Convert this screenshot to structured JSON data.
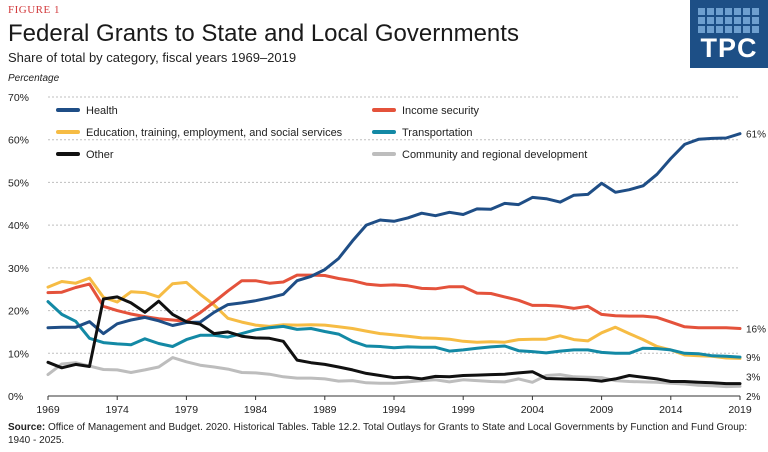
{
  "header": {
    "figure_label": "FIGURE 1",
    "title": "Federal Grants to State and Local Governments",
    "subtitle": "Share of total by category, fiscal years 1969–2019",
    "logo_text": "TPC"
  },
  "source": {
    "label": "Source:",
    "text": " Office of Management and Budget. 2020. Historical Tables. Table 12.2. Total Outlays for Grants to State and Local Governments by Function and Fund Group: 1940 - 2025."
  },
  "chart_data": {
    "type": "line",
    "title": "Federal Grants to State and Local Governments",
    "subtitle": "Share of total by category, fiscal years 1969–2019",
    "ylabel": "Percentage",
    "xlabel": "",
    "ylim": [
      0,
      70
    ],
    "xlim": [
      1969,
      2019
    ],
    "yticks": [
      "0%",
      "10%",
      "20%",
      "30%",
      "40%",
      "50%",
      "60%",
      "70%"
    ],
    "xticks": [
      "1969",
      "1974",
      "1979",
      "1984",
      "1989",
      "1994",
      "1999",
      "2004",
      "2009",
      "2014",
      "2019"
    ],
    "grid": "horizontal dashed",
    "legend_position": "top",
    "x": [
      1969,
      1970,
      1971,
      1972,
      1973,
      1974,
      1975,
      1976,
      1977,
      1978,
      1979,
      1980,
      1981,
      1982,
      1983,
      1984,
      1985,
      1986,
      1987,
      1988,
      1989,
      1990,
      1991,
      1992,
      1993,
      1994,
      1995,
      1996,
      1997,
      1998,
      1999,
      2000,
      2001,
      2002,
      2003,
      2004,
      2005,
      2006,
      2007,
      2008,
      2009,
      2010,
      2011,
      2012,
      2013,
      2014,
      2015,
      2016,
      2017,
      2018,
      2019
    ],
    "series": [
      {
        "name": "Health",
        "color": "#1f4e86",
        "end_label": "61%",
        "values": [
          16,
          16.1,
          16.1,
          17.4,
          14.6,
          16.9,
          17.8,
          18.4,
          17.6,
          16.5,
          17.2,
          17.3,
          19.6,
          21.4,
          21.8,
          22.3,
          23,
          23.8,
          27,
          28,
          29.6,
          32.2,
          36.3,
          40,
          41.2,
          40.9,
          41.7,
          42.8,
          42.2,
          43,
          42.5,
          43.8,
          43.7,
          45.1,
          44.8,
          46.5,
          46.2,
          45.4,
          47,
          47.2,
          49.8,
          47.7,
          48.3,
          49.2,
          51.9,
          55.6,
          58.9,
          60.1,
          60.3,
          60.4,
          61.4
        ]
      },
      {
        "name": "Income security",
        "color": "#e4523b",
        "end_label": "16%",
        "values": [
          24.2,
          24.3,
          25.4,
          26.2,
          21,
          20,
          19.2,
          18.6,
          18.1,
          17.8,
          17.5,
          19.5,
          22,
          24.6,
          27,
          27,
          26.4,
          26.7,
          28.3,
          28.3,
          28.2,
          27.5,
          27,
          26.2,
          25.9,
          26,
          25.8,
          25.2,
          25.1,
          25.6,
          25.6,
          24.1,
          24,
          23.2,
          22.4,
          21.2,
          21.2,
          21,
          20.5,
          21,
          19.1,
          18.8,
          18.7,
          18.7,
          18.4,
          17.3,
          16.2,
          16,
          16,
          16,
          15.8
        ]
      },
      {
        "name": "Education, training, employment, and social services",
        "color": "#f6bc44",
        "end_label": "",
        "values": [
          25.5,
          26.8,
          26.4,
          27.6,
          23.1,
          22,
          24.4,
          24.2,
          23.2,
          26.3,
          26.6,
          23.8,
          21.3,
          18.2,
          17.3,
          16.6,
          16.3,
          16.7,
          16.6,
          16.7,
          16.6,
          16.2,
          15.8,
          15.2,
          14.6,
          14.3,
          14,
          13.6,
          13.5,
          13.3,
          12.8,
          12.6,
          12.7,
          12.6,
          13.2,
          13.3,
          13.3,
          14.1,
          13.2,
          12.9,
          14.8,
          16.1,
          14.6,
          13.2,
          11.6,
          10.8,
          9.6,
          9.4,
          9.3,
          8.9,
          8.8
        ]
      },
      {
        "name": "Transportation",
        "color": "#1389a5",
        "end_label": "9%",
        "values": [
          22.1,
          19.1,
          17.5,
          13.5,
          12.5,
          12.2,
          12,
          13.4,
          12.3,
          11.6,
          13.2,
          14.2,
          14.2,
          13.8,
          14.6,
          15.5,
          16,
          16.3,
          15.6,
          15.8,
          15.1,
          14.5,
          12.8,
          11.7,
          11.6,
          11.3,
          11.5,
          11.4,
          11.4,
          10.5,
          10.8,
          11.2,
          11.5,
          11.7,
          10.6,
          10.4,
          10.1,
          10.5,
          10.8,
          10.8,
          10.2,
          10,
          10,
          11.2,
          11.1,
          10.8,
          10,
          9.9,
          9.4,
          9.3,
          9.1
        ]
      },
      {
        "name": "Other",
        "color": "#111111",
        "end_label": "3%",
        "values": [
          7.9,
          6.6,
          7.4,
          6.9,
          22.7,
          23.2,
          21.8,
          19.6,
          22.2,
          19.1,
          17.4,
          16.8,
          14.6,
          15,
          14,
          13.6,
          13.5,
          12.8,
          8.4,
          7.8,
          7.4,
          6.8,
          6.1,
          5.3,
          4.8,
          4.3,
          4.4,
          4,
          4.6,
          4.5,
          4.8,
          4.9,
          5,
          5.1,
          5.4,
          5.7,
          4.1,
          4,
          3.9,
          3.8,
          3.5,
          4,
          4.8,
          4.4,
          4,
          3.4,
          3.4,
          3.2,
          3.1,
          2.9,
          2.9
        ]
      },
      {
        "name": "Community and regional development",
        "color": "#bdbdbd",
        "end_label": "2%",
        "values": [
          5,
          7.5,
          7.8,
          7,
          6.2,
          6.1,
          5.5,
          6.1,
          6.8,
          9,
          8,
          7.2,
          6.8,
          6.3,
          5.5,
          5.4,
          5.1,
          4.5,
          4.2,
          4.2,
          4,
          3.5,
          3.6,
          3.1,
          3,
          3,
          3.3,
          3.6,
          3.8,
          3.3,
          3.8,
          3.6,
          3.4,
          3.3,
          4,
          3.2,
          4.8,
          5,
          4.5,
          4.4,
          4.3,
          3.6,
          3.4,
          3.3,
          3.2,
          3,
          2.8,
          2.5,
          2.4,
          2.2,
          2.3
        ]
      }
    ]
  }
}
